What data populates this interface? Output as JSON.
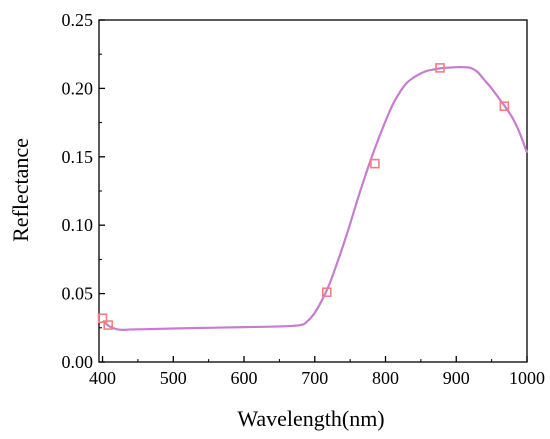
{
  "chart_data": {
    "type": "line",
    "title": "",
    "xlabel": "Wavelength(nm)",
    "ylabel": "Reflectance",
    "xlim": [
      395,
      1000
    ],
    "ylim": [
      0,
      0.25
    ],
    "x_ticks": [
      400,
      500,
      600,
      700,
      800,
      900,
      1000
    ],
    "x_tick_labels": [
      "400",
      "500",
      "600",
      "700",
      "800",
      "900",
      "1000"
    ],
    "y_ticks": [
      0,
      0.05,
      0.1,
      0.15,
      0.2,
      0.25
    ],
    "y_tick_labels": [
      "0.00",
      "0.05",
      "0.10",
      "0.15",
      "0.20",
      "0.25"
    ],
    "grid": false,
    "line_color": "#c77dcf",
    "marker_color": "#f08080",
    "series": [
      {
        "x": [
          400,
          410,
          420,
          430,
          440,
          460,
          500,
          550,
          600,
          650,
          680,
          690,
          700,
          710,
          720,
          730,
          740,
          750,
          760,
          770,
          780,
          790,
          800,
          810,
          820,
          830,
          840,
          850,
          860,
          870,
          880,
          890,
          900,
          910,
          920,
          930,
          940,
          950,
          960,
          970,
          980,
          990,
          1000
        ],
        "y": [
          0.03,
          0.026,
          0.024,
          0.0235,
          0.0238,
          0.024,
          0.0245,
          0.025,
          0.0255,
          0.026,
          0.027,
          0.03,
          0.036,
          0.045,
          0.056,
          0.07,
          0.085,
          0.101,
          0.118,
          0.134,
          0.149,
          0.163,
          0.176,
          0.188,
          0.197,
          0.204,
          0.208,
          0.211,
          0.213,
          0.214,
          0.2148,
          0.2152,
          0.2155,
          0.2155,
          0.215,
          0.212,
          0.206,
          0.2,
          0.193,
          0.186,
          0.178,
          0.167,
          0.153
        ]
      }
    ],
    "markers": [
      {
        "x": 400,
        "y": 0.032
      },
      {
        "x": 408,
        "y": 0.027
      },
      {
        "x": 717,
        "y": 0.051
      },
      {
        "x": 785,
        "y": 0.145
      },
      {
        "x": 877,
        "y": 0.215
      },
      {
        "x": 968,
        "y": 0.187
      }
    ]
  }
}
